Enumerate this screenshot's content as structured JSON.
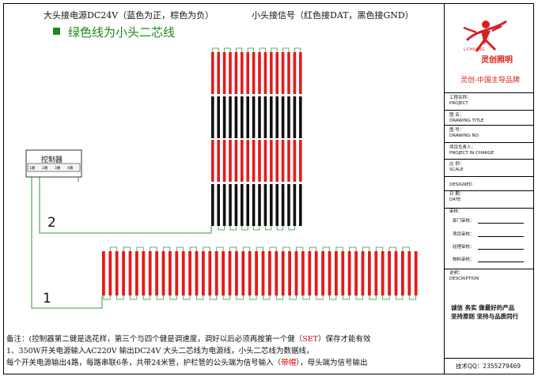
{
  "header": {
    "line1_left": "大头接电源DC24V（蓝色为正，棕色为负）",
    "line1_right": "小头接信号（红色接DAT，黑色接GND）",
    "legend_label": "绿色线为小头二芯线",
    "legend_color": "#1a8a1a"
  },
  "controller": {
    "label": "控制器",
    "ports": [
      "1路",
      "2路",
      "3路",
      "4路"
    ]
  },
  "line_labels": {
    "upper": "2",
    "lower": "1"
  },
  "colors": {
    "tube_red": "#e31b1b",
    "tube_black": "#111111",
    "wire_green": "#2e9a3a"
  },
  "tube_grid": {
    "upper_tubes": 16,
    "lower_tubes": 48,
    "upper_pattern": [
      "red",
      "black",
      "red",
      "black"
    ]
  },
  "notes": {
    "line1_a": "备注：(控制器第二健是选花样，第三个与四个健是调速度，调好以后必须再按第一个健（",
    "line1_b": "SET",
    "line1_c": "）保存才能有效",
    "line2": "1、350W开关电源输入AC220V      输出DC24V         大头二芯线为电源线，小头二芯线为数据线，",
    "line3_a": "每个开关电源输出4路，每路串联6条，共带24米管，护栏管的公头端为信号输入（",
    "line3_b": "带帽",
    "line3_c": "），母头端为信号输出"
  },
  "title_block": {
    "brand_latin": "L·CHUANG",
    "brand_cn": "灵创照明",
    "slogan": "灵创-中国主导品牌",
    "brand_color": "#d62020",
    "rows": [
      {
        "cn": "工程名称：",
        "en": "PROJECT"
      },
      {
        "cn": "图 名：",
        "en": "DRAWING TITLE"
      },
      {
        "cn": "图 号：",
        "en": "DRAWING NO"
      },
      {
        "cn": "项目负责人：",
        "en": "PROJECT IN CHARGE"
      },
      {
        "cn": "比 例：",
        "en": "SCALE"
      },
      {
        "cn": "",
        "en": "DESIGNED"
      },
      {
        "cn": "日 期：",
        "en": "DATE"
      },
      {
        "cn": "审核：",
        "en": ""
      },
      {
        "cn": "说明：",
        "en": "DESCRIPTION"
      }
    ],
    "reviewers": [
      "部门审核：",
      "项目审核：",
      "经理审核：",
      "物料审核："
    ],
    "motto1": "诚信  务实  做最好的产品",
    "motto2": "坚持原则  坚持与品质同行",
    "qq": "技术QQ：2355279469"
  }
}
